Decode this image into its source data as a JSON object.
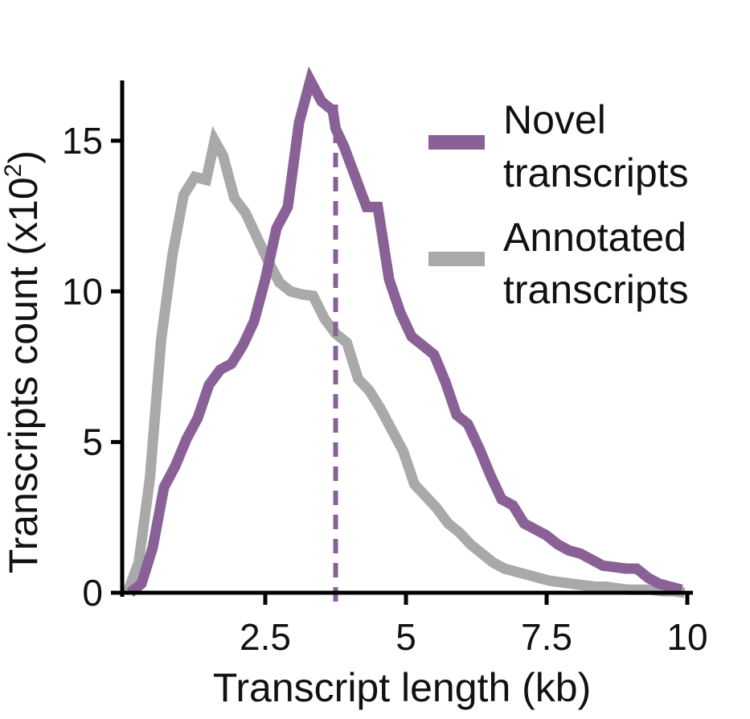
{
  "chart_data": {
    "type": "line",
    "xlabel": "Transcript length (kb)",
    "ylabel_prefix": "Transcripts count (x10",
    "ylabel_exp": "2",
    "ylabel_suffix": ")",
    "xlim": [
      0,
      10
    ],
    "ylim": [
      0,
      17
    ],
    "x_ticks": [
      2.5,
      5,
      7.5,
      10
    ],
    "x_tick_labels": [
      "2.5",
      "5",
      "7.5",
      "10"
    ],
    "y_ticks": [
      0,
      5,
      10,
      15
    ],
    "y_tick_labels": [
      "0",
      "5",
      "10",
      "15"
    ],
    "grid": false,
    "legend_position": "top-right",
    "marker_line": {
      "x": 3.75,
      "color": "#8a6196"
    },
    "series": [
      {
        "name": "Novel transcripts",
        "legend_line1": "Novel",
        "legend_line2": "transcripts",
        "color": "#8a6196",
        "x": [
          0.1,
          0.3,
          0.5,
          0.7,
          0.9,
          1.1,
          1.3,
          1.5,
          1.7,
          1.9,
          2.1,
          2.3,
          2.5,
          2.7,
          2.9,
          3.1,
          3.3,
          3.5,
          3.7,
          3.75,
          3.8,
          3.9,
          4.1,
          4.3,
          4.5,
          4.7,
          4.9,
          5.1,
          5.3,
          5.5,
          5.7,
          5.9,
          6.1,
          6.3,
          6.5,
          6.7,
          6.9,
          7.1,
          7.3,
          7.5,
          7.7,
          7.9,
          8.1,
          8.3,
          8.5,
          8.7,
          8.9,
          9.1,
          9.3,
          9.5,
          9.7,
          9.9
        ],
        "values": [
          0,
          0.3,
          1.5,
          3.5,
          4.2,
          5.1,
          5.8,
          6.9,
          7.4,
          7.6,
          8.2,
          9.0,
          10.4,
          12.1,
          12.8,
          15.6,
          17.0,
          16.3,
          16.0,
          15.4,
          15.2,
          14.8,
          13.8,
          12.8,
          12.8,
          10.4,
          9.3,
          8.5,
          8.2,
          7.9,
          7.0,
          5.9,
          5.6,
          4.8,
          3.9,
          3.1,
          2.9,
          2.3,
          2.1,
          1.9,
          1.6,
          1.4,
          1.3,
          1.1,
          0.9,
          0.85,
          0.8,
          0.8,
          0.5,
          0.3,
          0.2,
          0.1
        ]
      },
      {
        "name": "Annotated transcripts",
        "legend_line1": "Annotated",
        "legend_line2": "transcripts",
        "color": "#a9a9a9",
        "x": [
          0.05,
          0.25,
          0.45,
          0.65,
          0.85,
          1.05,
          1.25,
          1.45,
          1.6,
          1.75,
          1.95,
          2.15,
          2.35,
          2.55,
          2.75,
          2.95,
          3.15,
          3.35,
          3.55,
          3.75,
          3.95,
          4.15,
          4.35,
          4.55,
          4.75,
          4.95,
          5.15,
          5.35,
          5.55,
          5.75,
          5.95,
          6.15,
          6.35,
          6.55,
          6.75,
          6.95,
          7.15,
          7.35,
          7.55,
          7.75,
          7.95,
          8.15,
          8.35,
          8.55,
          8.75,
          8.95,
          9.15,
          9.35,
          9.55,
          9.75,
          9.95
        ],
        "values": [
          0,
          1.0,
          3.8,
          8.4,
          11.2,
          13.2,
          13.8,
          13.7,
          15.0,
          14.5,
          13.1,
          12.6,
          11.8,
          11.0,
          10.3,
          10.0,
          9.9,
          9.85,
          9.1,
          8.6,
          8.3,
          7.1,
          6.7,
          6.1,
          5.4,
          4.7,
          3.6,
          3.2,
          2.8,
          2.3,
          2.0,
          1.6,
          1.3,
          1.0,
          0.8,
          0.7,
          0.6,
          0.5,
          0.4,
          0.35,
          0.3,
          0.25,
          0.2,
          0.2,
          0.15,
          0.1,
          0.1,
          0.1,
          0.05,
          0.05,
          0
        ]
      }
    ]
  }
}
